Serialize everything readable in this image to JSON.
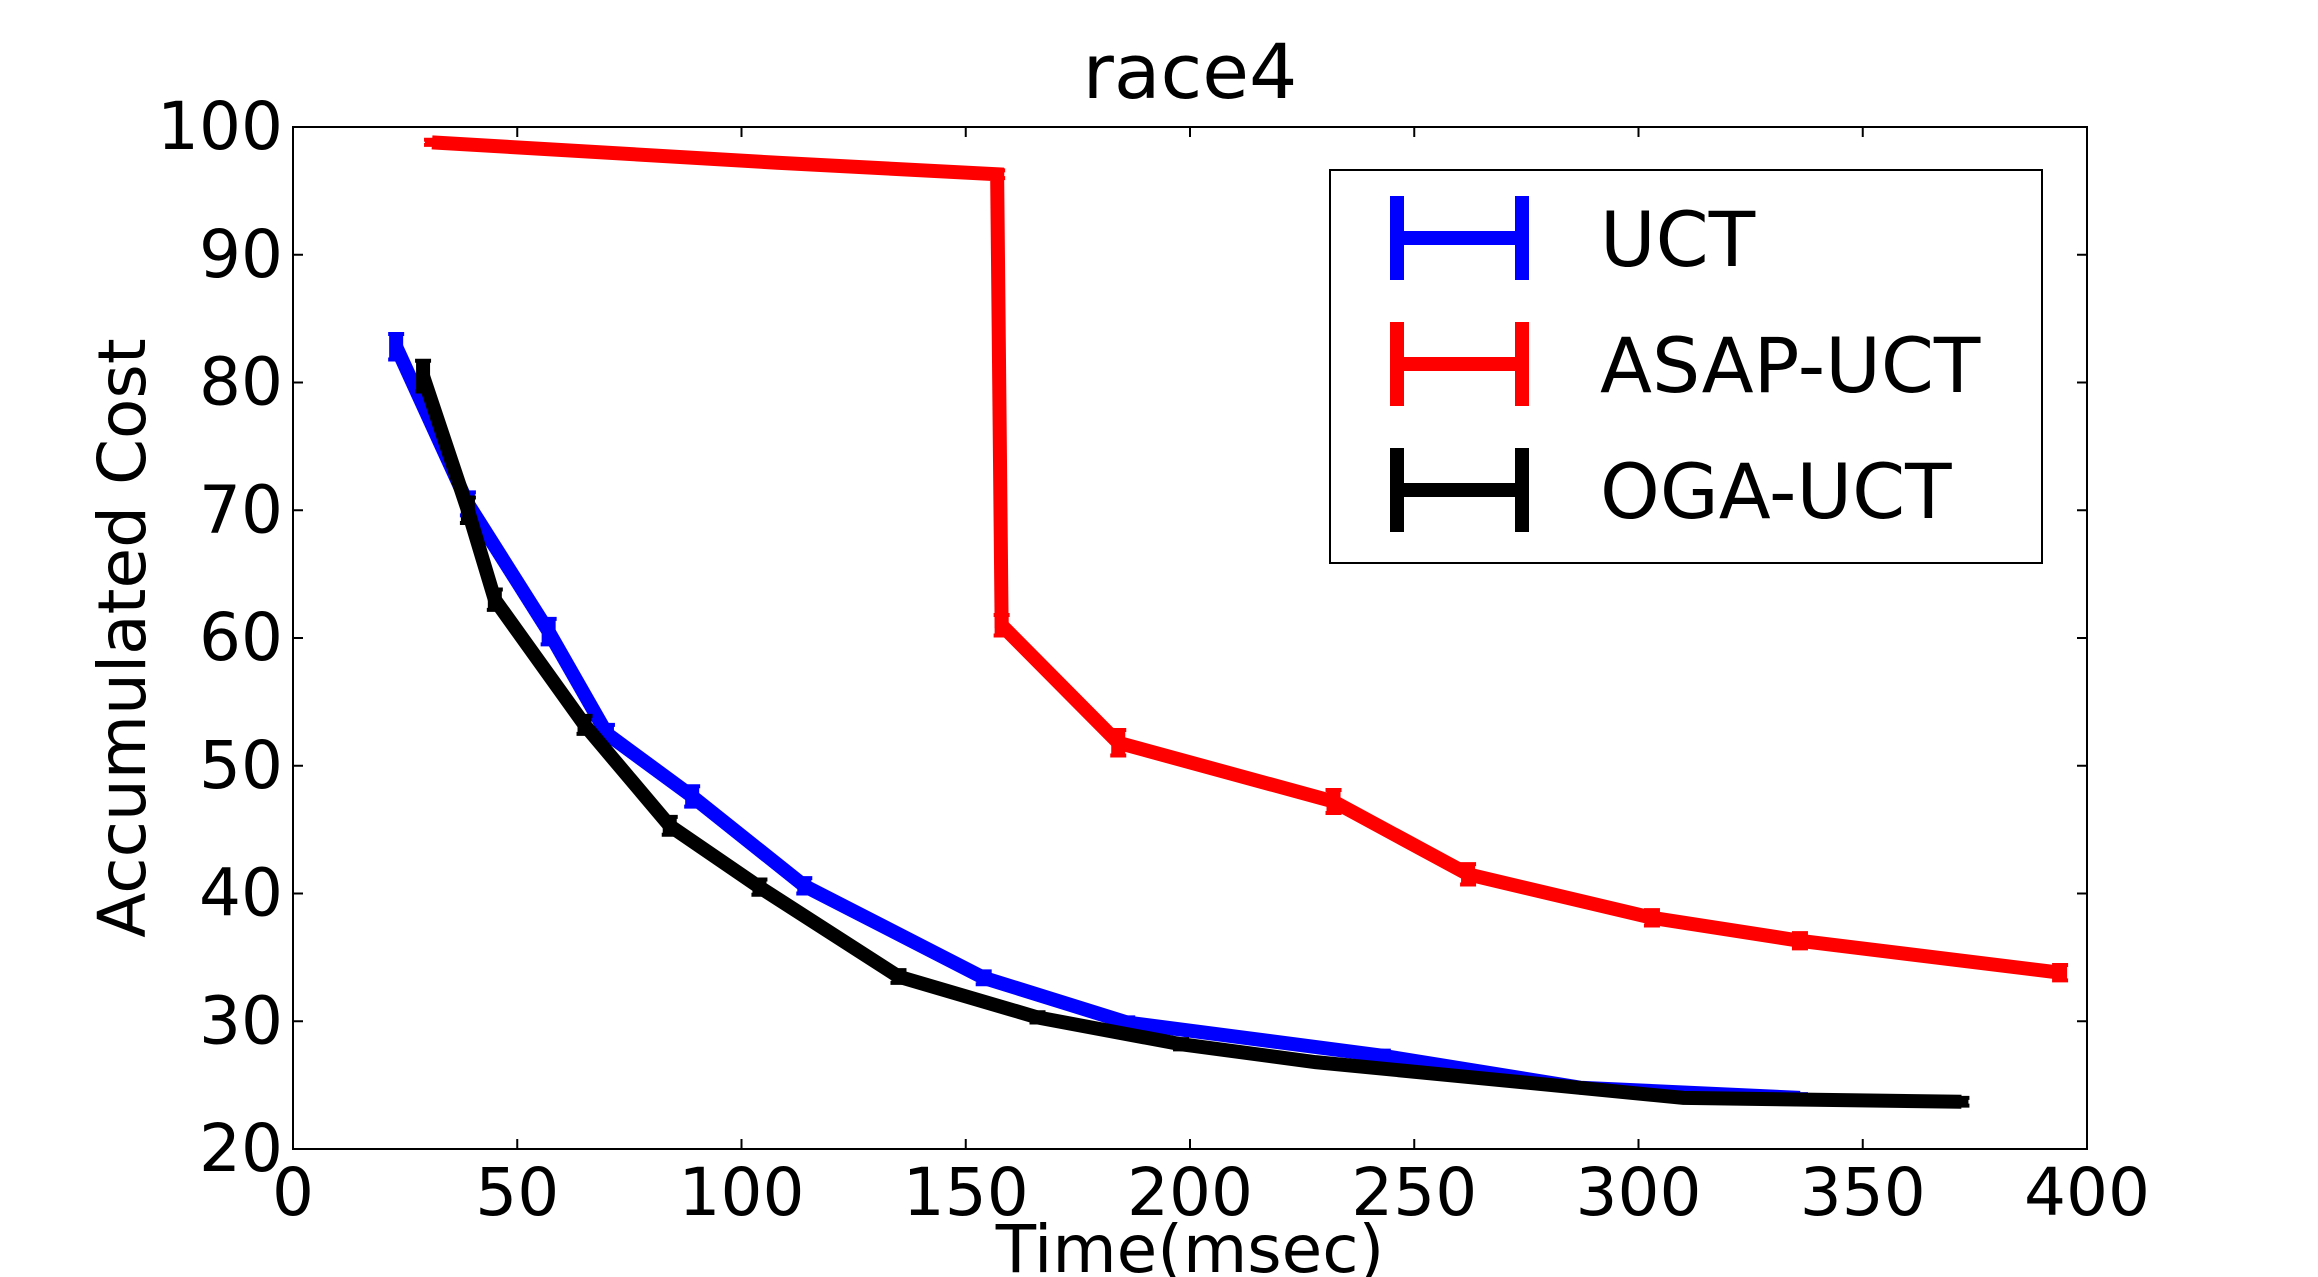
{
  "chart_data": {
    "type": "line",
    "title": "race4",
    "xlabel": "Time(msec)",
    "ylabel": "Accumulated Cost",
    "xlim": [
      0,
      400
    ],
    "ylim": [
      20,
      100
    ],
    "xticks": [
      0,
      50,
      100,
      150,
      200,
      250,
      300,
      350,
      400
    ],
    "yticks": [
      20,
      30,
      40,
      50,
      60,
      70,
      80,
      90,
      100
    ],
    "grid": false,
    "legend_position": "top-right",
    "series": [
      {
        "name": "UCT",
        "color": "#0000ff",
        "points": [
          {
            "x": 23,
            "y": 82.8,
            "err": 1.0
          },
          {
            "x": 39,
            "y": 70.5,
            "err": 0.9
          },
          {
            "x": 57,
            "y": 60.5,
            "err": 1.0
          },
          {
            "x": 70,
            "y": 52.5,
            "err": 0.7
          },
          {
            "x": 89,
            "y": 47.6,
            "err": 0.8
          },
          {
            "x": 114,
            "y": 40.6,
            "err": 0.6
          },
          {
            "x": 154,
            "y": 33.4,
            "err": 0.5
          },
          {
            "x": 186,
            "y": 29.9,
            "err": 0.4
          },
          {
            "x": 243,
            "y": 27.3,
            "err": 0.4
          },
          {
            "x": 287,
            "y": 24.8,
            "err": 0.3
          },
          {
            "x": 336,
            "y": 24.0,
            "err": 0.3
          }
        ]
      },
      {
        "name": "ASAP-UCT",
        "color": "#ff0000",
        "points": [
          {
            "x": 31,
            "y": 98.8,
            "err": 0.2
          },
          {
            "x": 108,
            "y": 97.2,
            "err": 0.3
          },
          {
            "x": 157,
            "y": 96.3,
            "err": 0.3
          },
          {
            "x": 158,
            "y": 61.0,
            "err": 0.8
          },
          {
            "x": 184,
            "y": 51.8,
            "err": 1.0
          },
          {
            "x": 232,
            "y": 47.2,
            "err": 0.9
          },
          {
            "x": 262,
            "y": 41.5,
            "err": 0.8
          },
          {
            "x": 303,
            "y": 38.1,
            "err": 0.6
          },
          {
            "x": 336,
            "y": 36.3,
            "err": 0.6
          },
          {
            "x": 394,
            "y": 33.8,
            "err": 0.6
          }
        ]
      },
      {
        "name": "OGA-UCT",
        "color": "#000000",
        "points": [
          {
            "x": 29,
            "y": 80.5,
            "err": 1.2
          },
          {
            "x": 39,
            "y": 70.0,
            "err": 1.0
          },
          {
            "x": 45,
            "y": 63.0,
            "err": 0.8
          },
          {
            "x": 65,
            "y": 53.2,
            "err": 0.7
          },
          {
            "x": 84,
            "y": 45.3,
            "err": 0.7
          },
          {
            "x": 104,
            "y": 40.5,
            "err": 0.6
          },
          {
            "x": 135,
            "y": 33.5,
            "err": 0.5
          },
          {
            "x": 166,
            "y": 30.3,
            "err": 0.4
          },
          {
            "x": 198,
            "y": 28.2,
            "err": 0.4
          },
          {
            "x": 228,
            "y": 26.8,
            "err": 0.3
          },
          {
            "x": 310,
            "y": 24.0,
            "err": 0.3
          },
          {
            "x": 372,
            "y": 23.7,
            "err": 0.3
          }
        ]
      }
    ]
  }
}
